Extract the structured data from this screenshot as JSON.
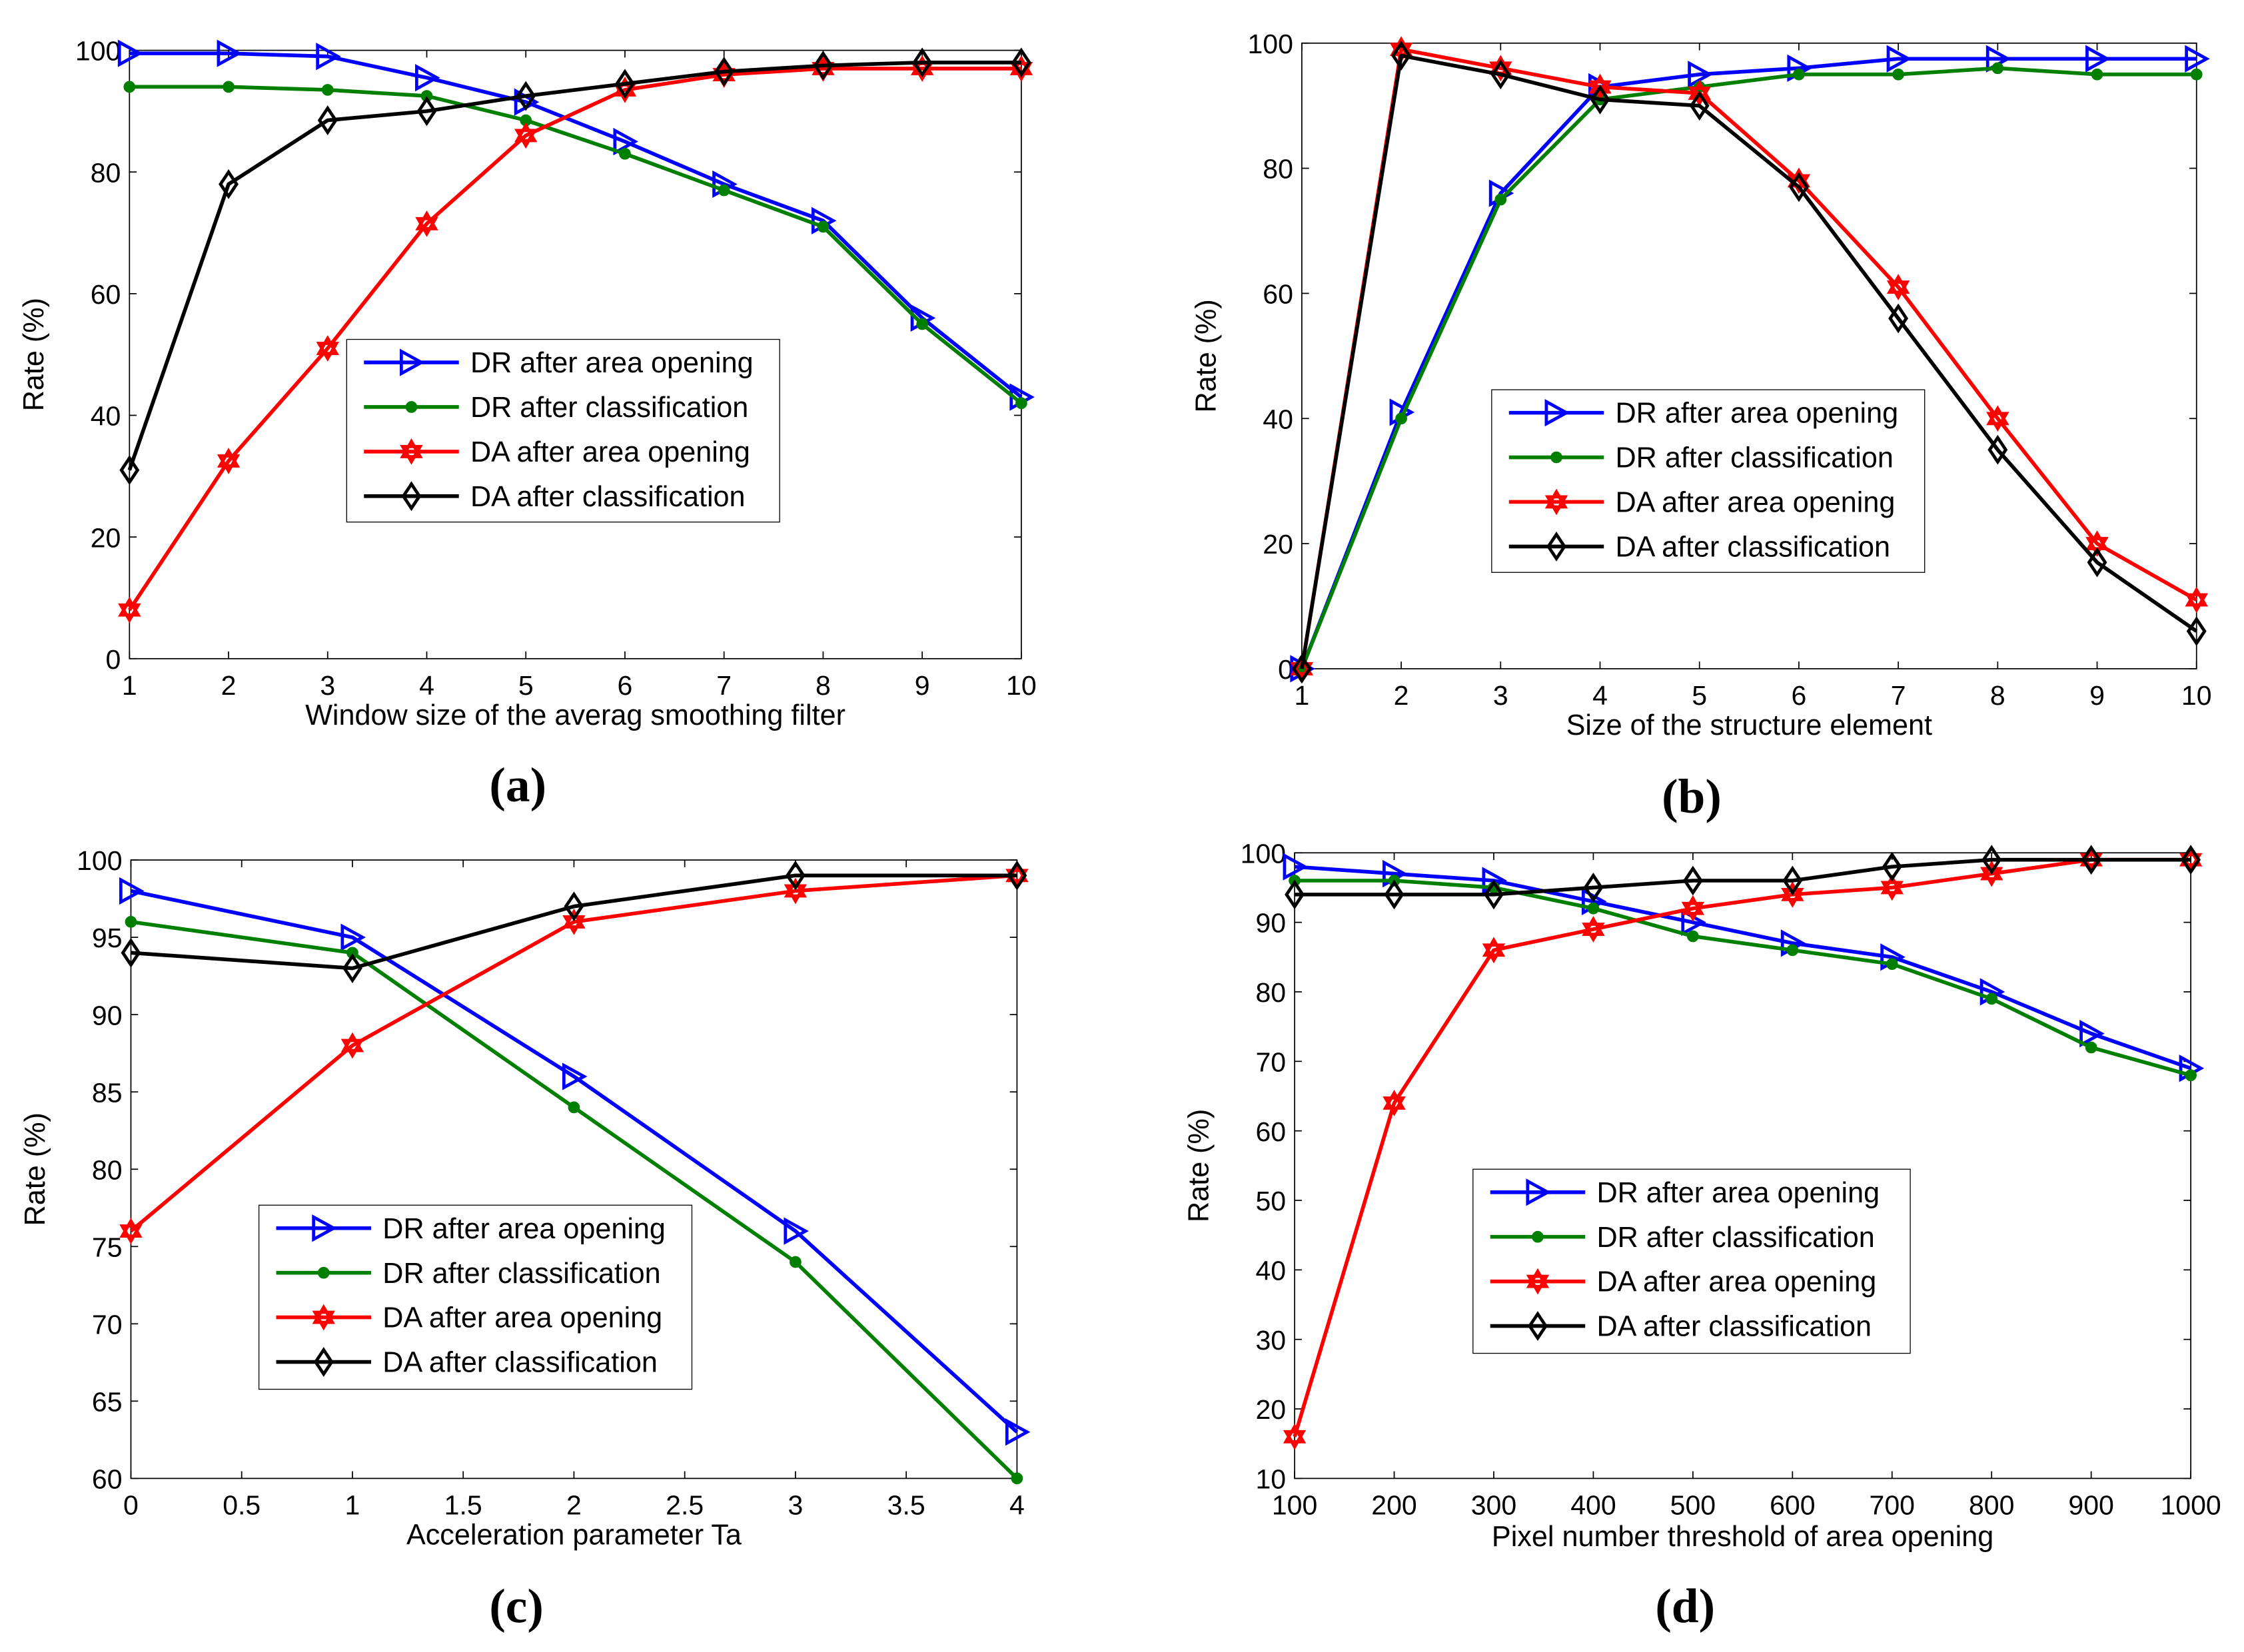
{
  "chart_data": [
    {
      "type": "line",
      "panel_label": "(a)",
      "xlabel": "Window size of the averag smoothing filter",
      "ylabel": "Rate (%)",
      "x": [
        1,
        2,
        3,
        4,
        5,
        6,
        7,
        8,
        9,
        10
      ],
      "xticks": [
        1,
        2,
        3,
        4,
        5,
        6,
        7,
        8,
        9,
        10
      ],
      "yticks": [
        0,
        20,
        40,
        60,
        80,
        100
      ],
      "xlim": [
        1,
        10
      ],
      "ylim": [
        0,
        100
      ],
      "legend_placement": "center",
      "series": [
        {
          "name": "DR after area opening",
          "color": "#0000ff",
          "marker": "triangle-right",
          "values": [
            99.5,
            99.5,
            99,
            95.5,
            91.5,
            85,
            78,
            72,
            56,
            43
          ]
        },
        {
          "name": "DR after classification",
          "color": "#007f00",
          "marker": "dot",
          "values": [
            94,
            94,
            93.5,
            92.5,
            88.5,
            83,
            77,
            71,
            55,
            42
          ]
        },
        {
          "name": "DA after area opening",
          "color": "#ff0000",
          "marker": "hexagram",
          "values": [
            8,
            32.5,
            51,
            71.5,
            86,
            93.5,
            96,
            97,
            97,
            97
          ]
        },
        {
          "name": "DA after classification",
          "color": "#000000",
          "marker": "diamond",
          "values": [
            31,
            78,
            88.5,
            90,
            92.5,
            94.5,
            96.5,
            97.5,
            98,
            98
          ]
        }
      ]
    },
    {
      "type": "line",
      "panel_label": "(b)",
      "xlabel": "Size of the structure element",
      "ylabel": "Rate (%)",
      "x": [
        1,
        2,
        3,
        4,
        5,
        6,
        7,
        8,
        9,
        10
      ],
      "xticks": [
        1,
        2,
        3,
        4,
        5,
        6,
        7,
        8,
        9,
        10
      ],
      "yticks": [
        0,
        20,
        40,
        60,
        80,
        100
      ],
      "xlim": [
        1,
        10
      ],
      "ylim": [
        0,
        100
      ],
      "legend_placement": "center",
      "series": [
        {
          "name": "DR after area opening",
          "color": "#0000ff",
          "marker": "triangle-right",
          "values": [
            0,
            41,
            76,
            93,
            95,
            96,
            97.5,
            97.5,
            97.5,
            97.5
          ]
        },
        {
          "name": "DR after classification",
          "color": "#007f00",
          "marker": "dot",
          "values": [
            0,
            40,
            75,
            91,
            93,
            95,
            95,
            96,
            95,
            95
          ]
        },
        {
          "name": "DA after area opening",
          "color": "#ff0000",
          "marker": "hexagram",
          "values": [
            0,
            99,
            96,
            93,
            92,
            78,
            61,
            40,
            20,
            11
          ]
        },
        {
          "name": "DA after classification",
          "color": "#000000",
          "marker": "diamond",
          "values": [
            0,
            98,
            95,
            91,
            90,
            77,
            56,
            35,
            17,
            6
          ]
        }
      ]
    },
    {
      "type": "line",
      "panel_label": "(c)",
      "xlabel": "Acceleration parameter Ta",
      "ylabel": "Rate (%)",
      "x": [
        0,
        1,
        2,
        3,
        4
      ],
      "xticks": [
        0,
        0.5,
        1,
        1.5,
        2,
        2.5,
        3,
        3.5,
        4
      ],
      "yticks": [
        60,
        65,
        70,
        75,
        80,
        85,
        90,
        95,
        100
      ],
      "xlim": [
        0,
        4
      ],
      "ylim": [
        60,
        100
      ],
      "legend_placement": "center-left",
      "series": [
        {
          "name": "DR after area opening",
          "color": "#0000ff",
          "marker": "triangle-right",
          "values": [
            98,
            95,
            86,
            76,
            63
          ]
        },
        {
          "name": "DR after classification",
          "color": "#007f00",
          "marker": "dot",
          "values": [
            96,
            94,
            84,
            74,
            60
          ]
        },
        {
          "name": "DA after area opening",
          "color": "#ff0000",
          "marker": "hexagram",
          "values": [
            76,
            88,
            96,
            98,
            99
          ]
        },
        {
          "name": "DA after classification",
          "color": "#000000",
          "marker": "diamond",
          "values": [
            94,
            93,
            97,
            99,
            99
          ]
        }
      ]
    },
    {
      "type": "line",
      "panel_label": "(d)",
      "xlabel": "Pixel number threshold of area opening",
      "ylabel": "Rate (%)",
      "x": [
        100,
        200,
        300,
        400,
        500,
        600,
        700,
        800,
        900,
        1000
      ],
      "xticks": [
        100,
        200,
        300,
        400,
        500,
        600,
        700,
        800,
        900,
        1000
      ],
      "yticks": [
        10,
        20,
        30,
        40,
        50,
        60,
        70,
        80,
        90,
        100
      ],
      "xlim": [
        100,
        1000
      ],
      "ylim": [
        10,
        100
      ],
      "legend_placement": "center",
      "series": [
        {
          "name": "DR after area opening",
          "color": "#0000ff",
          "marker": "triangle-right",
          "values": [
            98,
            97,
            96,
            93,
            90,
            87,
            85,
            80,
            74,
            69
          ]
        },
        {
          "name": "DR after classification",
          "color": "#007f00",
          "marker": "dot",
          "values": [
            96,
            96,
            95,
            92,
            88,
            86,
            84,
            79,
            72,
            68
          ]
        },
        {
          "name": "DA after area opening",
          "color": "#ff0000",
          "marker": "hexagram",
          "values": [
            16,
            64,
            86,
            89,
            92,
            94,
            95,
            97,
            99,
            99
          ]
        },
        {
          "name": "DA after classification",
          "color": "#000000",
          "marker": "diamond",
          "values": [
            94,
            94,
            94,
            95,
            96,
            96,
            98,
            99,
            99,
            99
          ]
        }
      ]
    }
  ]
}
